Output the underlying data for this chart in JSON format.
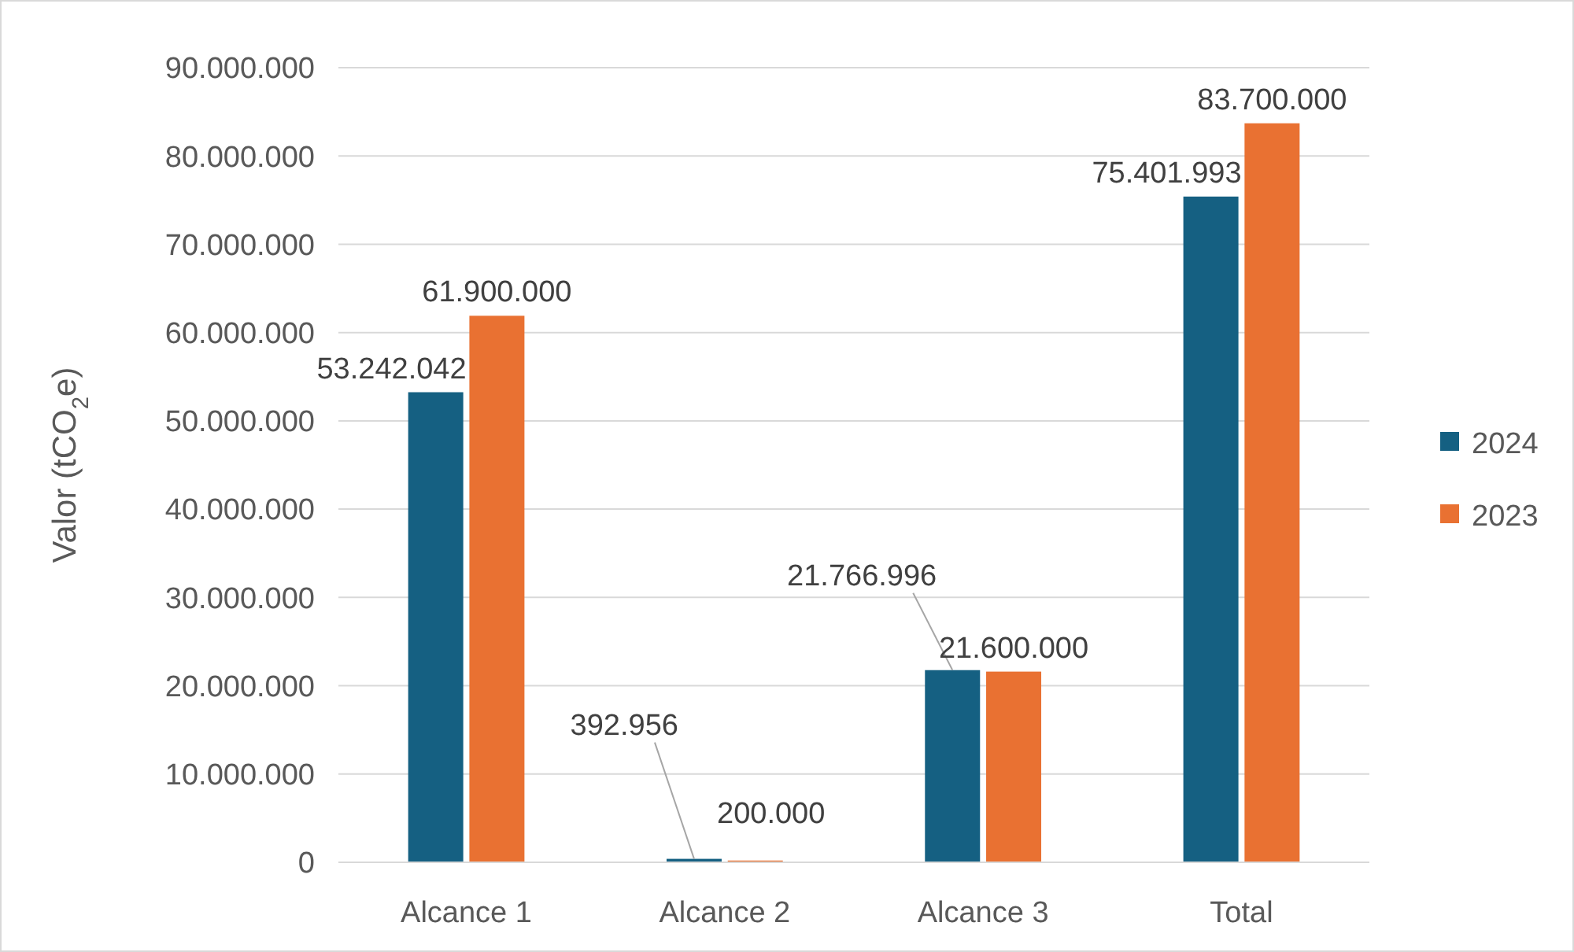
{
  "chart_data": {
    "type": "bar",
    "ylabel": "Valor (tCO$_{2}$e)",
    "categories": [
      "Alcance 1",
      "Alcance 2",
      "Alcance 3",
      "Total"
    ],
    "series": [
      {
        "name": "2024",
        "color": "#156082",
        "values": [
          53242042,
          392956,
          21766996,
          75401993
        ],
        "value_labels": [
          "53.242.042",
          "392.956",
          "21.766.996",
          "75.401.993"
        ]
      },
      {
        "name": "2023",
        "color": "#e97132",
        "values": [
          61900000,
          200000,
          21600000,
          83700000
        ],
        "value_labels": [
          "61.900.000",
          "200.000",
          "21.600.000",
          "83.700.000"
        ]
      }
    ],
    "ylim": [
      0,
      90000000
    ],
    "yticks": [
      {
        "value": 0,
        "label": "0"
      },
      {
        "value": 10000000,
        "label": "10.000.000"
      },
      {
        "value": 20000000,
        "label": "20.000.000"
      },
      {
        "value": 30000000,
        "label": "30.000.000"
      },
      {
        "value": 40000000,
        "label": "40.000.000"
      },
      {
        "value": 50000000,
        "label": "50.000.000"
      },
      {
        "value": 60000000,
        "label": "60.000.000"
      },
      {
        "value": 70000000,
        "label": "70.000.000"
      },
      {
        "value": 80000000,
        "label": "80.000.000"
      },
      {
        "value": 90000000,
        "label": "90.000.000"
      }
    ],
    "grid": "y",
    "legend": "right"
  }
}
